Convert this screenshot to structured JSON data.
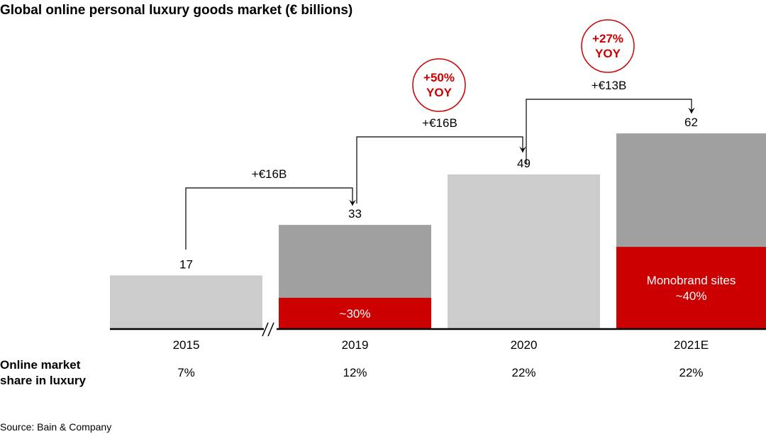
{
  "chart_data": {
    "type": "bar",
    "title": "Global online personal luxury goods market (€ billions)",
    "categories": [
      "2015",
      "2019",
      "2020",
      "2021E"
    ],
    "values": [
      17,
      33,
      49,
      62
    ],
    "monobrand_share": [
      null,
      0.3,
      null,
      0.4
    ],
    "segment_labels": [
      null,
      "~30%",
      null,
      "Monobrand sites\n~40%"
    ],
    "axis_break_between": [
      "2015",
      "2019"
    ],
    "changes": [
      {
        "from": "2015",
        "to": "2019",
        "label": "+€16B",
        "yoy": null
      },
      {
        "from": "2019",
        "to": "2020",
        "label": "+€16B",
        "yoy": "+50%\nYOY"
      },
      {
        "from": "2020",
        "to": "2021E",
        "label": "+€13B",
        "yoy": "+27%\nYOY"
      }
    ],
    "row_label": "Online market\nshare in luxury",
    "online_share": [
      "7%",
      "12%",
      "22%",
      "22%"
    ],
    "source": "Source: Bain & Company",
    "colors": {
      "total": "#cccccc",
      "total_dark": "#a0a0a0",
      "monobrand": "#cc0000",
      "accent": "#cc0000"
    }
  }
}
